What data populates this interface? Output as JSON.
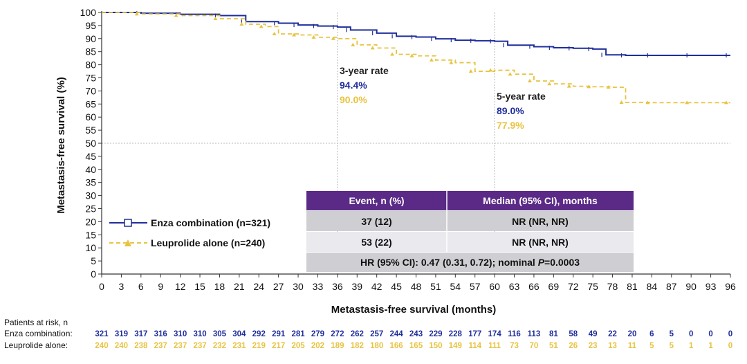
{
  "chart_data": {
    "type": "line",
    "xlabel": "Metastasis-free survival (months)",
    "ylabel": "Metastasis-free survival (%)",
    "xlim": [
      0,
      96
    ],
    "ylim": [
      0,
      100
    ],
    "x_ticks": [
      "0",
      "3",
      "6",
      "9",
      "12",
      "15",
      "18",
      "21",
      "24",
      "27",
      "30",
      "33",
      "36",
      "39",
      "42",
      "45",
      "48",
      "51",
      "54",
      "57",
      "60",
      "63",
      "66",
      "69",
      "72",
      "75",
      "78",
      "81",
      "84",
      "87",
      "90",
      "93",
      "96"
    ],
    "y_ticks": [
      "0",
      "5",
      "10",
      "15",
      "20",
      "25",
      "30",
      "35",
      "40",
      "45",
      "50",
      "55",
      "60",
      "65",
      "70",
      "75",
      "80",
      "85",
      "90",
      "95",
      "100"
    ],
    "reference_lines": {
      "x": [
        36,
        60
      ],
      "y": [
        50
      ]
    },
    "series": [
      {
        "name": "Enza combination (n=321)",
        "color": "#1f2d9c",
        "style": "solid",
        "marker": "open-square",
        "x": [
          0,
          6,
          12,
          18,
          22,
          27,
          30,
          33,
          36,
          38,
          42,
          45,
          48,
          51,
          54,
          57,
          60,
          62,
          66,
          69,
          72,
          75,
          77,
          80,
          84,
          90,
          96
        ],
        "y": [
          100,
          99.7,
          99.3,
          98.8,
          96.5,
          95.9,
          95.2,
          94.8,
          94.4,
          93.3,
          92.1,
          90.9,
          90.6,
          89.9,
          89.4,
          89.2,
          89.0,
          87.5,
          86.9,
          86.5,
          86.3,
          86.0,
          83.8,
          83.6,
          83.6,
          83.6,
          83.6
        ]
      },
      {
        "name": "Leuprolide alone (n=240)",
        "color": "#e8c340",
        "style": "dashed",
        "marker": "filled-triangle",
        "x": [
          0,
          6,
          12,
          18,
          22,
          25,
          27,
          30,
          33,
          36,
          39,
          42,
          45,
          48,
          51,
          54,
          57,
          60,
          63,
          66,
          69,
          72,
          75,
          78,
          80,
          84,
          90,
          96
        ],
        "y": [
          100,
          99.4,
          98.8,
          97.6,
          95.5,
          94.6,
          91.8,
          91.4,
          90.5,
          90.0,
          87.6,
          86.4,
          84.0,
          83.4,
          81.8,
          80.8,
          77.5,
          77.9,
          76.4,
          73.8,
          72.7,
          71.8,
          71.6,
          71.4,
          65.6,
          65.5,
          65.5,
          65.5
        ]
      }
    ],
    "annotations": [
      {
        "title": "3-year rate",
        "values": [
          "94.4%",
          "90.0%"
        ]
      },
      {
        "title": "5-year rate",
        "values": [
          "89.0%",
          "77.9%"
        ]
      }
    ],
    "legend": {
      "placement": "lower-left"
    },
    "summary_table": {
      "headers": [
        "Event, n (%)",
        "Median (95% CI), months"
      ],
      "rows": [
        [
          "37 (12)",
          "NR (NR, NR)"
        ],
        [
          "53 (22)",
          "NR (NR, NR)"
        ]
      ],
      "hr_prefix": "HR (95% CI): 0.47 (0.31, 0.72); nominal ",
      "hr_p_symbol": "P",
      "hr_p_value": "=0.0003",
      "header_color": "#5b2a86"
    },
    "at_risk": {
      "title": "Patients at risk, n",
      "rows": [
        {
          "label": "Enza combination:",
          "color": "#1f2d9c",
          "values": [
            "321",
            "319",
            "317",
            "316",
            "310",
            "310",
            "305",
            "304",
            "292",
            "291",
            "281",
            "279",
            "272",
            "262",
            "257",
            "244",
            "243",
            "229",
            "228",
            "177",
            "174",
            "116",
            "113",
            "81",
            "58",
            "49",
            "22",
            "20",
            "6",
            "5",
            "0",
            "0",
            "0"
          ]
        },
        {
          "label": "Leuprolide alone:",
          "color": "#e8c340",
          "values": [
            "240",
            "240",
            "238",
            "237",
            "237",
            "237",
            "232",
            "231",
            "219",
            "217",
            "205",
            "202",
            "189",
            "182",
            "180",
            "166",
            "165",
            "150",
            "149",
            "114",
            "111",
            "73",
            "70",
            "51",
            "26",
            "23",
            "13",
            "11",
            "5",
            "5",
            "1",
            "1",
            "0"
          ]
        }
      ]
    }
  }
}
